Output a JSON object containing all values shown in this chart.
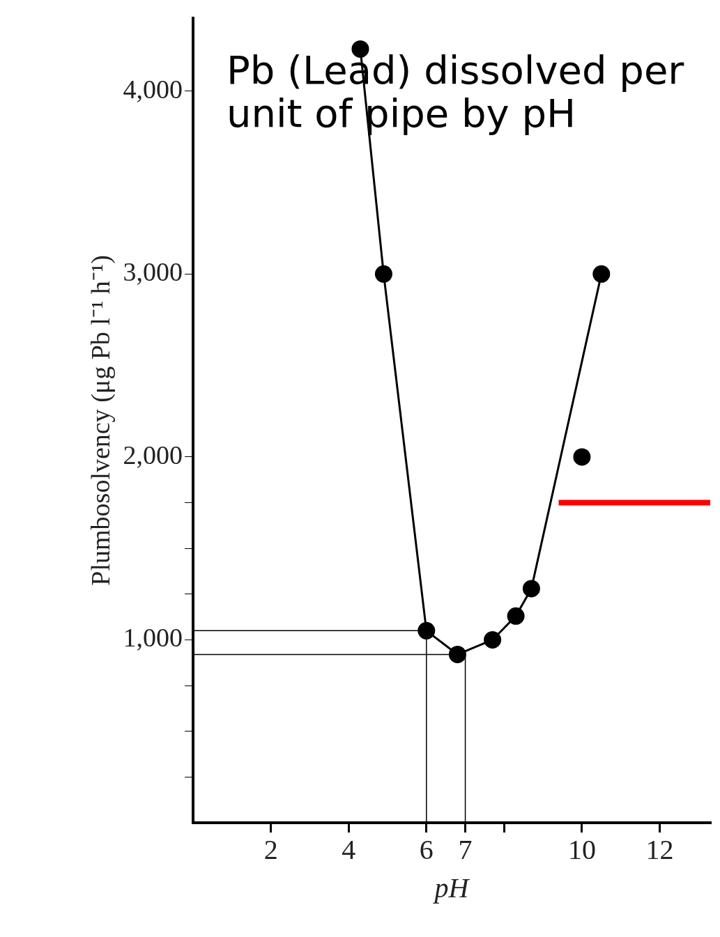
{
  "chart_data": {
    "type": "line",
    "title": "Pb (Lead) dissolved per unit of pipe by pH",
    "xlabel": "pH",
    "ylabel": "Plumbosolvency (μg Pb l⁻¹ h⁻¹)",
    "xlim": [
      0,
      13.3
    ],
    "ylim": [
      0,
      4400
    ],
    "xticks": [
      2,
      4,
      6,
      7,
      {
        "value": 8,
        "label": null
      },
      10,
      12
    ],
    "yticks": [
      {
        "value": 250,
        "label": null
      },
      {
        "value": 500,
        "label": null
      },
      {
        "value": 750,
        "label": null
      },
      {
        "value": 1000,
        "label": "1,000"
      },
      {
        "value": 1250,
        "label": null
      },
      {
        "value": 1500,
        "label": null
      },
      {
        "value": 1750,
        "label": null
      },
      {
        "value": 2000,
        "label": "2,000"
      },
      {
        "value": 3000,
        "label": "3,000"
      },
      {
        "value": 4000,
        "label": "4,000"
      }
    ],
    "grid": false,
    "legend": false,
    "series": [
      {
        "type": "line",
        "color": "#000000",
        "marker": "circle",
        "x": [
          4.3,
          4.9,
          6.0,
          6.8,
          7.7,
          8.3,
          8.7,
          10.5
        ],
        "values": [
          4230,
          3000,
          1050,
          920,
          1000,
          1130,
          1280,
          3000
        ]
      },
      {
        "type": "scatter",
        "color": "#000000",
        "marker": "circle",
        "x": [
          10.0
        ],
        "values": [
          2000
        ]
      },
      {
        "type": "line",
        "color": "#000000",
        "marker": "none",
        "x": [
          0,
          6.0,
          6.0
        ],
        "values": [
          1050,
          1050,
          0
        ]
      },
      {
        "type": "line",
        "color": "#000000",
        "marker": "none",
        "x": [
          0,
          7.0,
          7.0
        ],
        "values": [
          920,
          920,
          0
        ]
      },
      {
        "type": "line",
        "color": "#ff0000",
        "marker": "none",
        "x": [
          9.4,
          13.3
        ],
        "values": [
          1750,
          1750
        ]
      }
    ]
  }
}
